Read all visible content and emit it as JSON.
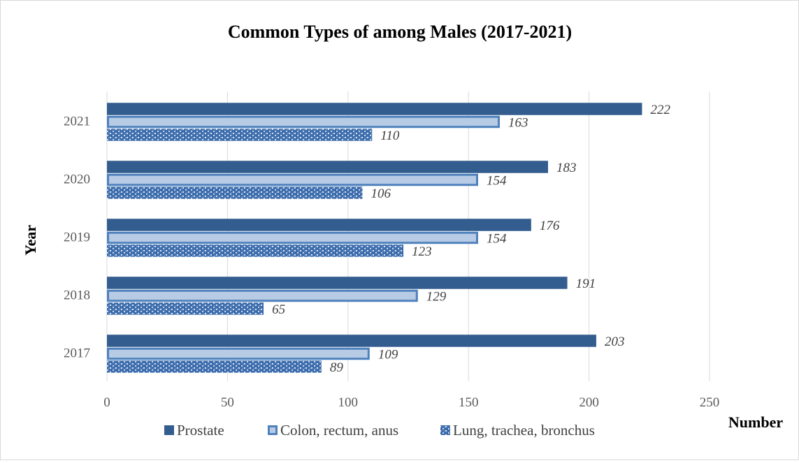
{
  "chart_data": {
    "type": "bar",
    "orientation": "horizontal",
    "title": "Common Types of among Males (2017-2021)",
    "xlabel": "Number",
    "ylabel": "Year",
    "categories": [
      "2017",
      "2018",
      "2019",
      "2020",
      "2021"
    ],
    "series": [
      {
        "name": "Prostate",
        "values": [
          203,
          191,
          176,
          183,
          222
        ],
        "color": "#335d8f",
        "style": "solid"
      },
      {
        "name": "Colon, rectum, anus",
        "values": [
          109,
          129,
          154,
          154,
          163
        ],
        "color": "#b7cbe5",
        "stroke": "#4f81bd",
        "style": "outlined"
      },
      {
        "name": "Lung, trachea, bronchus",
        "values": [
          89,
          65,
          123,
          106,
          110
        ],
        "color": "#2e5fa3",
        "style": "textured"
      }
    ],
    "xlim": [
      0,
      250
    ],
    "xticks": [
      0,
      50,
      100,
      150,
      200,
      250
    ],
    "grid": true,
    "legend_position": "bottom",
    "data_labels": true
  }
}
